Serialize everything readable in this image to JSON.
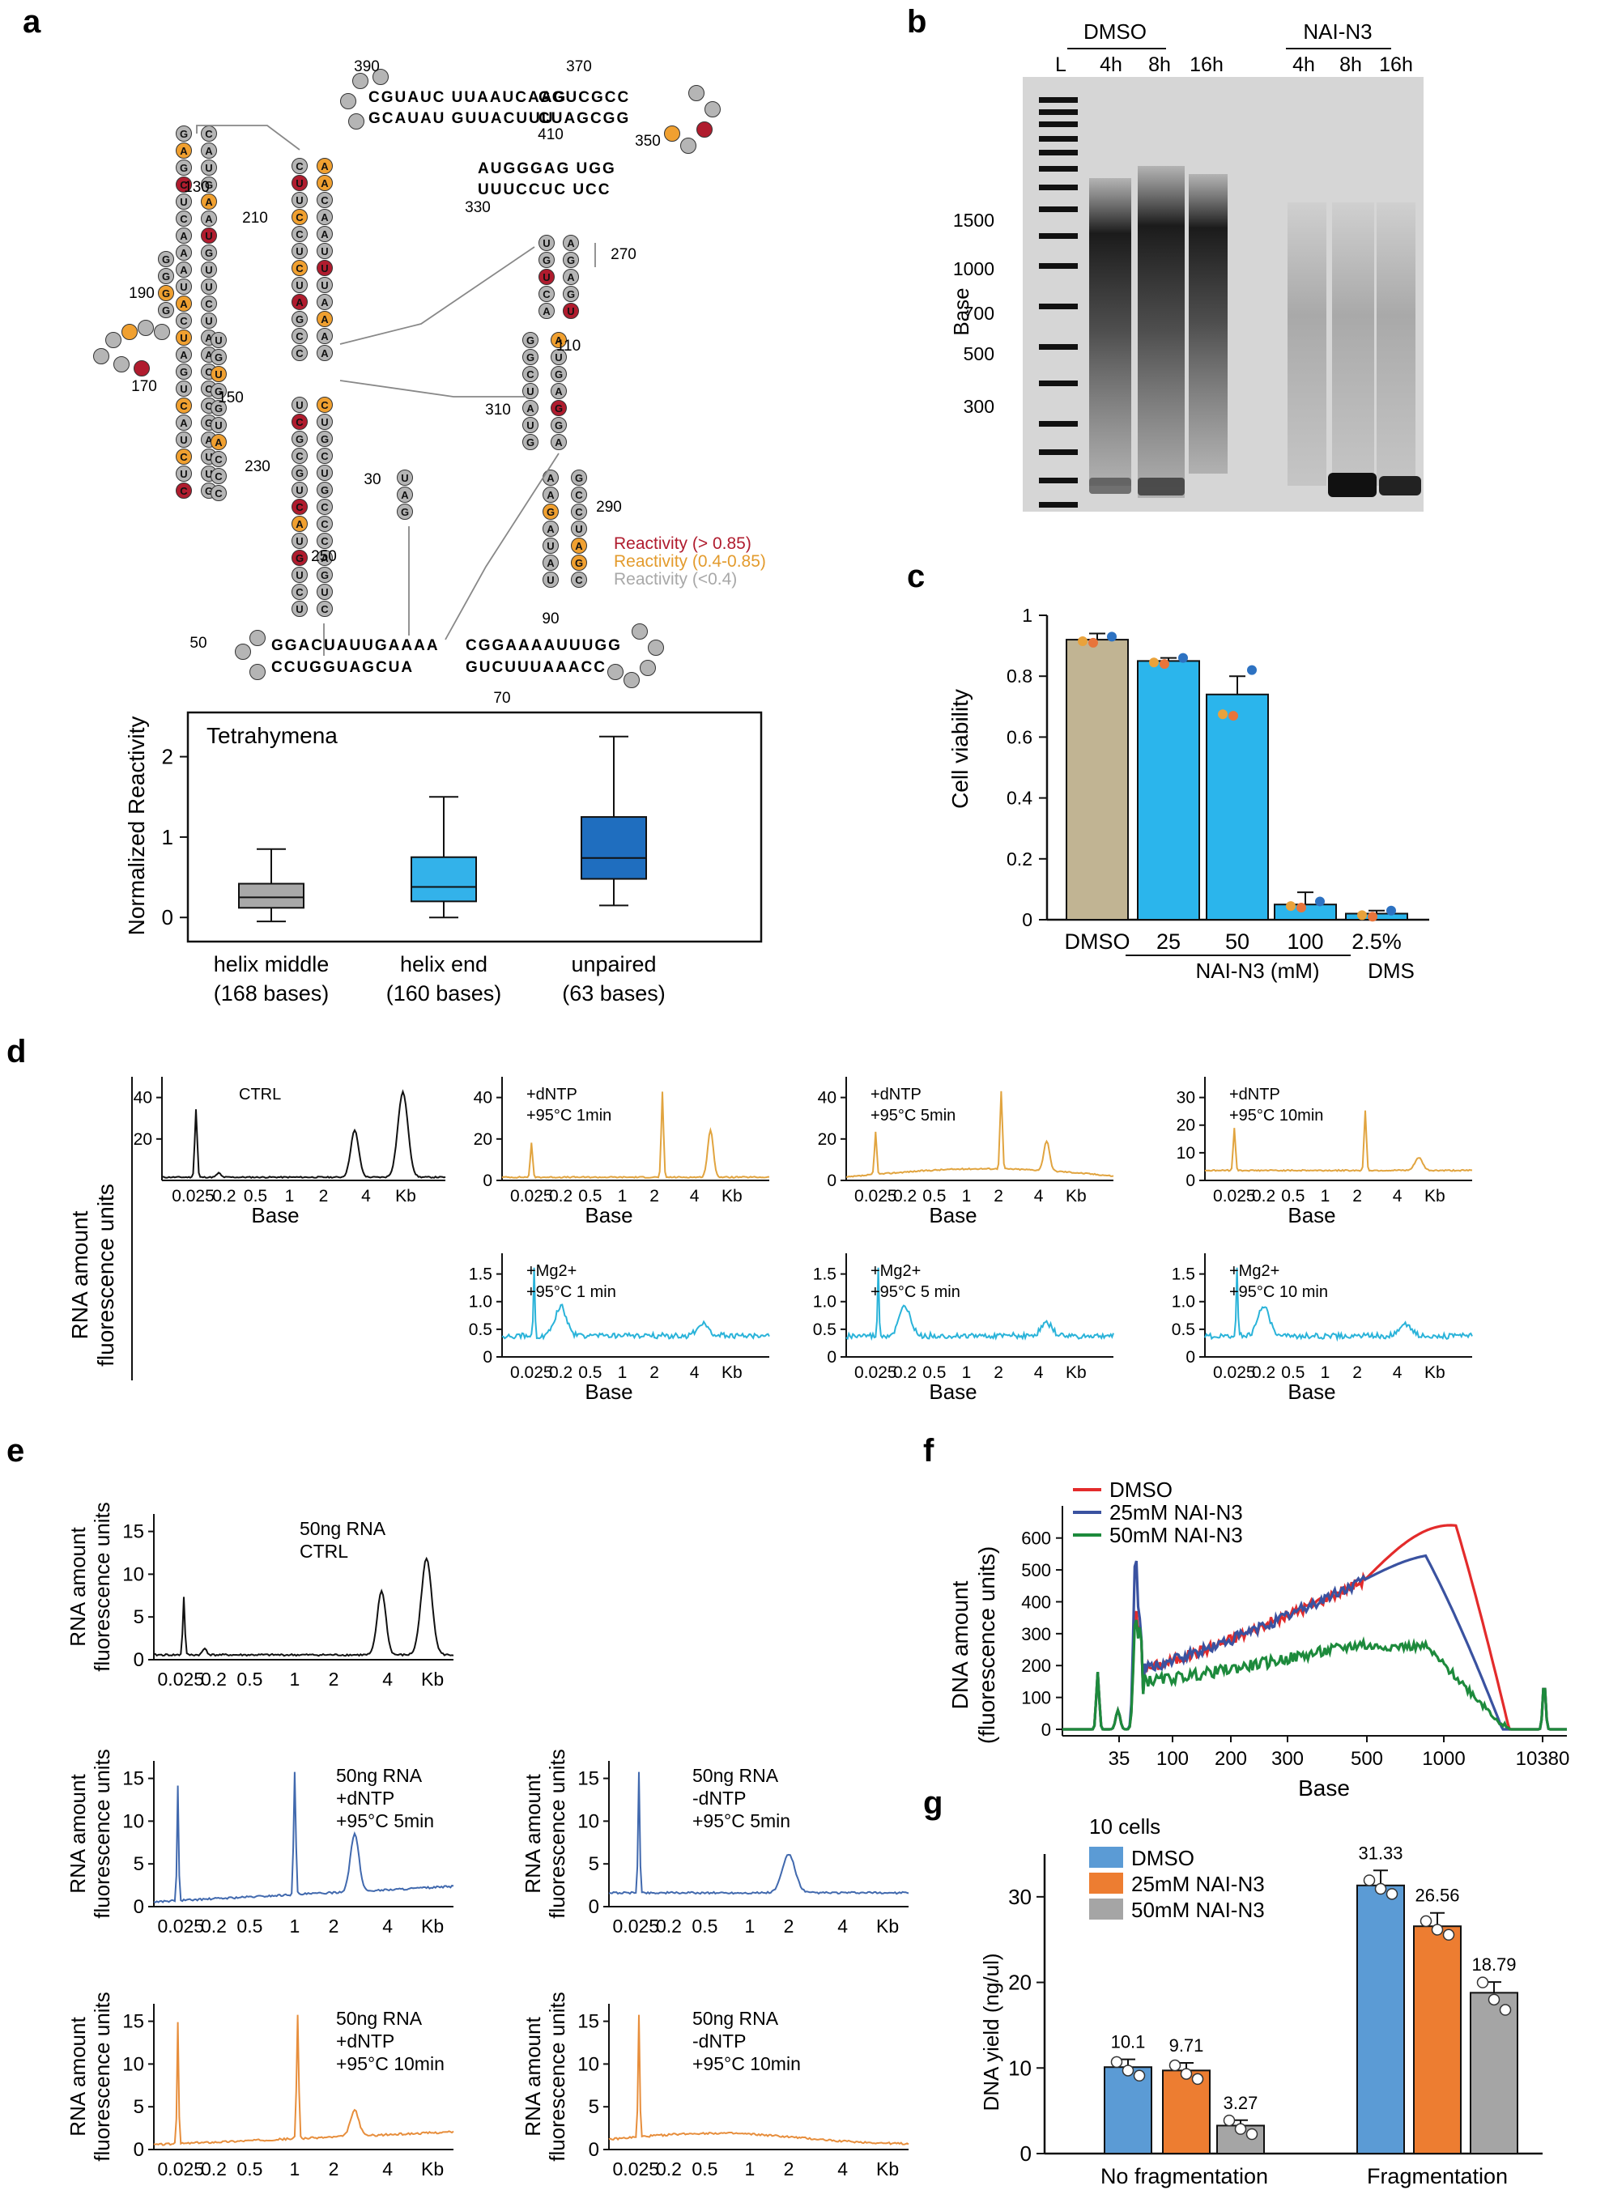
{
  "panels": {
    "a": "a",
    "b": "b",
    "c": "c",
    "d": "d",
    "e": "e",
    "f": "f",
    "g": "g"
  },
  "colors": {
    "high": "#b01c2e",
    "mid": "#f0a030",
    "low": "#b5b5b5",
    "gray_box": "#a8a8a8",
    "light_blue": "#33b2ea",
    "dark_blue": "#1f6ebf",
    "tan": "#c1b493",
    "sky": "#2bb5ec",
    "gold": "#e1a43f",
    "cyan": "#2ab3d9",
    "navy_trace": "#4169ae",
    "orange_trace": "#e78e3c",
    "red": "#e32b2b",
    "blue": "#3a52a0",
    "green": "#1d8a3c",
    "g_blue": "#5b9bd5",
    "g_orange": "#ed7d31",
    "g_gray": "#a5a5a5"
  },
  "panel_a": {
    "structure": {
      "numbers": [
        "390",
        "370",
        "410",
        "350",
        "330",
        "130",
        "210",
        "270",
        "190",
        "110",
        "170",
        "150",
        "310",
        "230",
        "30",
        "290",
        "250",
        "90",
        "50",
        "70"
      ],
      "legend": [
        {
          "label": "Reactivity (> 0.85)",
          "color": "#b01c2e"
        },
        {
          "label": "Reactivity (0.4-0.85)",
          "color": "#e39b2d"
        },
        {
          "label": "Reactivity (<0.4)",
          "color": "#a8a8a8"
        }
      ],
      "seq_top_left": "CGUAUC UUAAUCAAG",
      "seq_top_right": "GGUCGCC",
      "seq_top_left_b": "GCAUAU GUUACUUU",
      "seq_top_right_b": "CUAGCGG",
      "seq_mid": "AUGGGAG UGG",
      "seq_mid_b": "UUUCCUC UCC",
      "seq_bottom_left": "GGACUAUUGAAAA",
      "seq_bottom_left_b": "CCUGGUAGCUA",
      "seq_bottom_right": "CGGAAAAUUUGG",
      "seq_bottom_right_b": "GUCUUUAAACC"
    },
    "chart_data": {
      "type": "box",
      "title": "Tetrahymena",
      "ylabel": "Normalized Reactivity",
      "ylim": [
        -0.3,
        2.55
      ],
      "yticks": [
        "0",
        "1",
        "2"
      ],
      "categories": [
        {
          "name": "helix middle",
          "count": "(168 bases)",
          "min": -0.05,
          "q1": 0.12,
          "median": 0.25,
          "q3": 0.42,
          "max": 0.85,
          "color": "#a8a8a8"
        },
        {
          "name": "helix end",
          "count": "(160 bases)",
          "min": 0.0,
          "q1": 0.2,
          "median": 0.38,
          "q3": 0.75,
          "max": 1.5,
          "color": "#33b2ea"
        },
        {
          "name": "unpaired",
          "count": "(63 bases)",
          "min": 0.15,
          "q1": 0.48,
          "median": 0.74,
          "q3": 1.25,
          "max": 2.25,
          "color": "#1f6ebf"
        }
      ]
    }
  },
  "panel_b": {
    "groups": [
      "DMSO",
      "NAI-N3"
    ],
    "lane_labels": [
      "L",
      "4h",
      "8h",
      "16h",
      "4h",
      "8h",
      "16h"
    ],
    "ylabel": "Base",
    "sizes": [
      "1500",
      "1000",
      "700",
      "500",
      "300"
    ]
  },
  "panel_c": {
    "chart_data": {
      "type": "bar",
      "ylabel": "Cell viability",
      "ylim": [
        0,
        1.0
      ],
      "yticks": [
        "0",
        "0.2",
        "0.4",
        "0.6",
        "0.8",
        "1"
      ],
      "categories": [
        "DMSO",
        "25",
        "50",
        "100",
        "2.5%"
      ],
      "values": [
        0.92,
        0.85,
        0.74,
        0.05,
        0.02
      ],
      "errors": [
        0.02,
        0.01,
        0.06,
        0.04,
        0.01
      ],
      "group_labels": [
        "NAI-N3 (mM)",
        "DMS"
      ]
    }
  },
  "panel_d": {
    "ylabel_1": "RNA amount",
    "ylabel_2": "fluorescence units",
    "xlabel": "Base",
    "xticks": [
      "0.025",
      "0.2",
      "0.5",
      "1",
      "2",
      "4",
      "Kb"
    ],
    "plots": [
      {
        "label_1": "CTRL",
        "label_2": "",
        "color": "#111111",
        "yticks": [
          "20",
          "40"
        ]
      },
      {
        "label_1": "+dNTP",
        "label_2": "+95°C 1min",
        "color": "#e1a43f",
        "yticks": [
          "0",
          "20",
          "40"
        ]
      },
      {
        "label_1": "+dNTP",
        "label_2": "+95°C 5min",
        "color": "#e1a43f",
        "yticks": [
          "0",
          "20",
          "40"
        ]
      },
      {
        "label_1": "+dNTP",
        "label_2": "+95°C 10min",
        "color": "#e1a43f",
        "yticks": [
          "0",
          "10",
          "20",
          "30"
        ]
      },
      {
        "label_1": "+Mg2+",
        "label_2": "+95°C 1 min",
        "color": "#2ab3d9",
        "yticks": [
          "0",
          "0.5",
          "1.0",
          "1.5"
        ]
      },
      {
        "label_1": "+Mg2+",
        "label_2": "+95°C 5 min",
        "color": "#2ab3d9",
        "yticks": [
          "0",
          "0.5",
          "1.0",
          "1.5"
        ]
      },
      {
        "label_1": "+Mg2+",
        "label_2": "+95°C 10 min",
        "color": "#2ab3d9",
        "yticks": [
          "0",
          "0.5",
          "1.0",
          "1.5"
        ]
      }
    ]
  },
  "panel_e": {
    "ylabel_1": "RNA amount",
    "ylabel_2": "fluorescence units",
    "xticks": [
      "0.025",
      "0.2",
      "0.5",
      "1",
      "2",
      "4",
      "Kb"
    ],
    "plots": [
      {
        "l1": "50ng RNA",
        "l2": "CTRL",
        "l3": "",
        "color": "#111111"
      },
      {
        "l1": "50ng RNA",
        "l2": "+dNTP",
        "l3": "+95°C 5min",
        "color": "#4169ae"
      },
      {
        "l1": "50ng RNA",
        "l2": "-dNTP",
        "l3": "+95°C 5min",
        "color": "#4169ae"
      },
      {
        "l1": "50ng RNA",
        "l2": "+dNTP",
        "l3": "+95°C 10min",
        "color": "#e78e3c"
      },
      {
        "l1": "50ng RNA",
        "l2": "-dNTP",
        "l3": "+95°C 10min",
        "color": "#e78e3c"
      }
    ],
    "yticks": [
      "0",
      "5",
      "10",
      "15"
    ]
  },
  "panel_f": {
    "chart_data": {
      "type": "line",
      "ylabel_1": "DNA amount",
      "ylabel_2": "(fluorescence units)",
      "xlabel": "Base",
      "xticks": [
        "35",
        "100",
        "200",
        "300",
        "500",
        "1000",
        "10380"
      ],
      "yticks": [
        "0",
        "100",
        "200",
        "300",
        "400",
        "500",
        "600"
      ],
      "ylim": [
        0,
        650
      ],
      "series": [
        {
          "name": "DMSO",
          "color": "#e32b2b"
        },
        {
          "name": "25mM NAI-N3",
          "color": "#3a52a0"
        },
        {
          "name": "50mM NAI-N3",
          "color": "#1d8a3c"
        }
      ]
    }
  },
  "panel_g": {
    "chart_data": {
      "type": "bar",
      "title": "10 cells",
      "ylabel": "DNA yield (ng/ul)",
      "ylim": [
        0,
        35
      ],
      "yticks": [
        "0",
        "10",
        "20",
        "30"
      ],
      "categories": [
        "No fragmentation",
        "Fragmentation"
      ],
      "series": [
        {
          "name": "DMSO",
          "color": "#5b9bd5",
          "values": [
            10.1,
            31.33
          ],
          "labels": [
            "10.1",
            "31.33"
          ]
        },
        {
          "name": "25mM NAI-N3",
          "color": "#ed7d31",
          "values": [
            9.71,
            26.56
          ],
          "labels": [
            "9.71",
            "26.56"
          ]
        },
        {
          "name": "50mM NAI-N3",
          "color": "#a5a5a5",
          "values": [
            3.27,
            18.79
          ],
          "labels": [
            "3.27",
            "18.79"
          ]
        }
      ]
    }
  }
}
